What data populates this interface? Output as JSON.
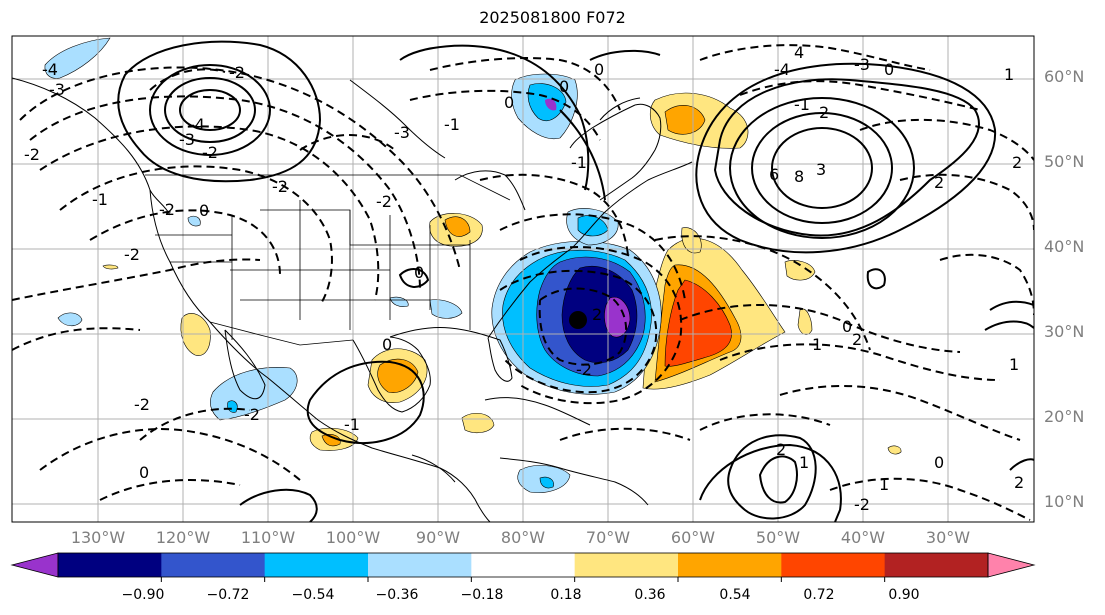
{
  "title": "2025081800 F072",
  "lat_labels": [
    "60°N",
    "50°N",
    "40°N",
    "30°N",
    "20°N",
    "10°N"
  ],
  "lon_labels": [
    "130°W",
    "120°W",
    "110°W",
    "100°W",
    "90°W",
    "80°W",
    "70°W",
    "60°W",
    "50°W",
    "40°W",
    "30°W"
  ],
  "colorbar": {
    "colors": [
      "#9933cc",
      "#000080",
      "#3355cc",
      "#00bfff",
      "#aadfff",
      "#ffffff",
      "#ffe680",
      "#ffa500",
      "#ff4500",
      "#b22222",
      "#ff82ab"
    ],
    "tick_labels": [
      "−0.90",
      "−0.72",
      "−0.54",
      "−0.36",
      "−0.18",
      "0.18",
      "0.36",
      "0.54",
      "0.72",
      "0.90"
    ]
  },
  "contour_labels": [
    "-4",
    "-3",
    "-2",
    "-2",
    "-2",
    "-3",
    "-1",
    "-2",
    "-2",
    "-4",
    "-3",
    "-2",
    "-1",
    "-2",
    "0",
    "0",
    "0",
    "0",
    "-1",
    "-2",
    "-2",
    "0",
    "0",
    "0",
    "-1",
    "-2",
    "2",
    "2",
    "1",
    "0",
    "1",
    "2",
    "4",
    "6",
    "8",
    "3",
    "2",
    "-1",
    "0",
    "2",
    "1",
    "2",
    "1",
    "0",
    "-2",
    "1",
    "2",
    "-4",
    "-3"
  ]
}
